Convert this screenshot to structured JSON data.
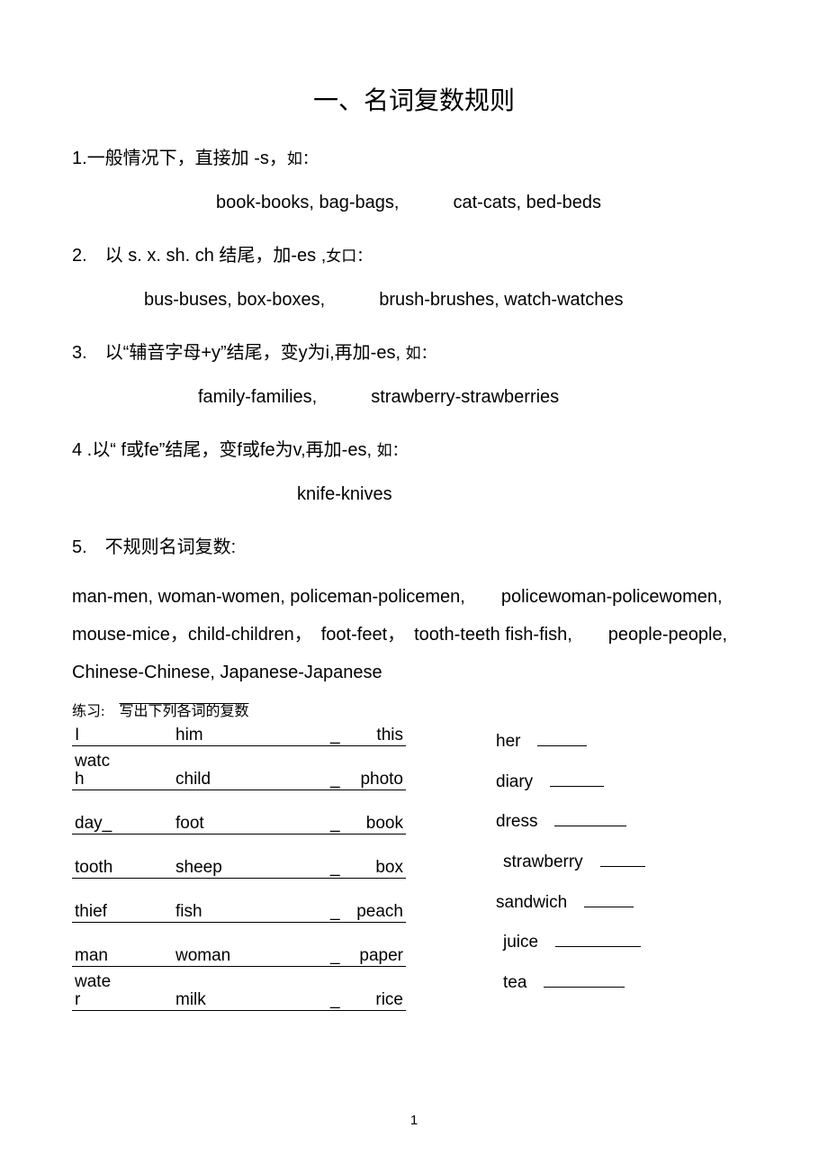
{
  "title": "一、名词复数规则",
  "rules": [
    {
      "num": "1.",
      "text": "一般情况下，直接加 -s，",
      "suffix": "如：",
      "examples_class": "indent-1",
      "examples": "book-books, bag-bags,<span class=\"gap\"></span>cat-cats, bed-beds"
    },
    {
      "num": "2.",
      "text": "　以 s. x. sh. ch 结尾，加-es ,",
      "suffix": "女口：",
      "examples_class": "indent-2",
      "examples": "bus-buses, box-boxes,<span class=\"gap\"></span>brush-brushes, watch-watches"
    },
    {
      "num": "3.",
      "text": "　以“辅音字母+y”结尾，变y为i,再加-es, ",
      "suffix": "如：",
      "examples_class": "indent-3",
      "examples": "family-families,<span class=\"gap\"></span>strawberry-strawberries"
    },
    {
      "num": "4 .",
      "text": "以“ f或fe”结尾，变f或fe为v,再加-es, ",
      "suffix": "如：",
      "examples_class": "indent-4",
      "examples": "knife-knives"
    },
    {
      "num": "5.",
      "text": "　不规则名词复数:",
      "suffix": "",
      "examples_class": "",
      "examples": ""
    }
  ],
  "irregular_lines": [
    "man-men, woman-women, policeman-policemen,<span class=\"sp\"></span>policewoman-policewomen,",
    "mouse-mice，child-children，　foot-feet，　tooth-teeth fish-fish,<span class=\"sp\"></span>people-people,",
    "Chinese-Chinese, Japanese-Japanese"
  ],
  "practice_label_a": "练习:　",
  "practice_label_b": "写出下列各词的复数",
  "left_table": [
    {
      "tall": false,
      "c1": "I",
      "c3": "him",
      "c6": "this"
    },
    {
      "tall": true,
      "c1": "watc h",
      "c3": "child",
      "c6": "photo"
    },
    {
      "tall": true,
      "c1": "day_",
      "c3": "foot",
      "c6": "book"
    },
    {
      "tall": true,
      "c1": "tooth",
      "c3": "sheep",
      "c6": "box"
    },
    {
      "tall": true,
      "c1": "thief",
      "c3": "fish",
      "c6": "peach"
    },
    {
      "tall": true,
      "c1": "man",
      "c3": "woman",
      "c6": "paper"
    },
    {
      "tall": true,
      "c1": "wate r",
      "c3": "milk",
      "c6": "rice"
    }
  ],
  "right_list": [
    {
      "word": "her",
      "blank": 55
    },
    {
      "word": "diary",
      "blank": 60
    },
    {
      "word": "dress",
      "blank": 80
    },
    {
      "word": "strawberry",
      "blank": 50,
      "indent": 8
    },
    {
      "word": "sandwich",
      "blank": 55
    },
    {
      "word": "juice",
      "blank": 95,
      "indent": 8
    },
    {
      "word": "tea",
      "blank": 90,
      "indent": 8
    }
  ],
  "page_number": "1"
}
